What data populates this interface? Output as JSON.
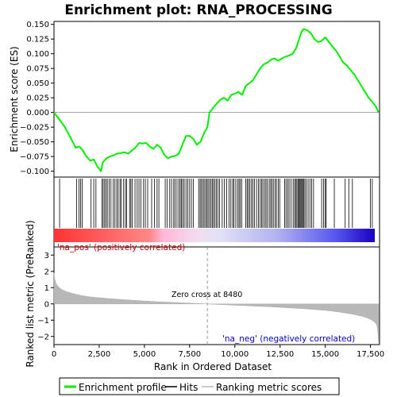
{
  "chart_data": {
    "type": "line",
    "title": "Enrichment plot: RNA_PROCESSING",
    "top_panel": {
      "ylabel": "Enrichment score (ES)",
      "ylim": [
        -0.11,
        0.155
      ],
      "yticks": [
        -0.1,
        -0.075,
        -0.05,
        -0.025,
        0.0,
        0.025,
        0.05,
        0.075,
        0.1,
        0.125,
        0.15
      ],
      "ytick_labels": [
        "−0.100",
        "−0.075",
        "−0.050",
        "−0.025",
        "0.000",
        "0.025",
        "0.050",
        "0.075",
        "0.100",
        "0.125",
        "0.150"
      ],
      "series": [
        {
          "name": "Enrichment profile",
          "color": "#00ee00",
          "x": [
            0,
            300,
            600,
            900,
            1200,
            1400,
            1600,
            1800,
            2000,
            2200,
            2400,
            2600,
            2700,
            2900,
            3100,
            3300,
            3500,
            3700,
            3900,
            4100,
            4300,
            4500,
            4700,
            4900,
            5100,
            5300,
            5500,
            5700,
            5900,
            6100,
            6300,
            6500,
            6700,
            6900,
            7100,
            7300,
            7500,
            7700,
            7900,
            8100,
            8300,
            8480,
            8600,
            8800,
            9000,
            9200,
            9400,
            9600,
            9800,
            10000,
            10200,
            10400,
            10600,
            10800,
            11000,
            11200,
            11400,
            11600,
            11800,
            12000,
            12200,
            12400,
            12600,
            12800,
            13000,
            13200,
            13400,
            13600,
            13700,
            13800,
            14000,
            14200,
            14400,
            14600,
            14800,
            15000,
            15200,
            15400,
            15600,
            15800,
            16000,
            16200,
            16400,
            16600,
            16800,
            17000,
            17200,
            17400,
            17600,
            17800,
            17950
          ],
          "y": [
            0.0,
            -0.012,
            -0.025,
            -0.042,
            -0.06,
            -0.058,
            -0.065,
            -0.075,
            -0.082,
            -0.08,
            -0.092,
            -0.1,
            -0.085,
            -0.078,
            -0.075,
            -0.073,
            -0.07,
            -0.069,
            -0.068,
            -0.07,
            -0.065,
            -0.06,
            -0.052,
            -0.053,
            -0.052,
            -0.058,
            -0.062,
            -0.055,
            -0.06,
            -0.072,
            -0.078,
            -0.075,
            -0.074,
            -0.07,
            -0.055,
            -0.04,
            -0.04,
            -0.045,
            -0.055,
            -0.05,
            -0.035,
            -0.025,
            0.0,
            0.008,
            0.015,
            0.022,
            0.025,
            0.02,
            0.03,
            0.032,
            0.035,
            0.03,
            0.045,
            0.05,
            0.055,
            0.065,
            0.075,
            0.082,
            0.085,
            0.09,
            0.092,
            0.088,
            0.092,
            0.095,
            0.097,
            0.1,
            0.11,
            0.13,
            0.138,
            0.142,
            0.14,
            0.135,
            0.125,
            0.12,
            0.122,
            0.128,
            0.12,
            0.112,
            0.105,
            0.095,
            0.085,
            0.08,
            0.072,
            0.065,
            0.055,
            0.045,
            0.035,
            0.025,
            0.018,
            0.01,
            0.0
          ]
        }
      ]
    },
    "hits_panel": {
      "hit_positions": [
        310,
        1250,
        1380,
        1470,
        1560,
        2050,
        2200,
        2320,
        2650,
        2720,
        2800,
        2870,
        2950,
        3050,
        3150,
        3280,
        3370,
        3470,
        3550,
        3650,
        3720,
        3850,
        3950,
        4020,
        4180,
        4250,
        4320,
        4480,
        4600,
        4700,
        4800,
        4950,
        5050,
        5180,
        5400,
        5550,
        5700,
        5800,
        6150,
        6250,
        6400,
        6500,
        6620,
        6700,
        6800,
        6900,
        6980,
        7050,
        7120,
        7200,
        7300,
        7400,
        7500,
        7600,
        7700,
        8000,
        8080,
        8150,
        8230,
        8300,
        8380,
        8450,
        8520,
        8600,
        8680,
        8750,
        8820,
        8900,
        8980,
        9060,
        9150,
        9300,
        9420,
        9550,
        9680,
        9780,
        9880,
        9950,
        10050,
        10150,
        10230,
        10300,
        10380,
        10600,
        10680,
        10750,
        10830,
        10920,
        11000,
        11080,
        11200,
        11300,
        11400,
        11480,
        11550,
        11640,
        11720,
        11800,
        11900,
        11980,
        12050,
        12130,
        12230,
        12300,
        12400,
        12480,
        12750,
        12830,
        12920,
        13000,
        13100,
        13220,
        13300,
        13370,
        13430,
        13490,
        13550,
        13600,
        13650,
        13700,
        13750,
        13800,
        13870,
        13950,
        14050,
        14150,
        14250,
        14350,
        14800,
        14900,
        15000,
        15050,
        15500,
        16100,
        16300,
        16500,
        17500,
        17600
      ]
    },
    "bottom_panel": {
      "ylabel": "Ranked list metric (PreRanked)",
      "xlabel": "Rank in Ordered Dataset",
      "ylim": [
        -2.5,
        3.5
      ],
      "yticks": [
        -2,
        -1,
        0,
        1,
        2,
        3
      ],
      "ytick_labels": [
        "−2",
        "−1",
        "0",
        "1",
        "2",
        "3"
      ],
      "metric_x": [
        0,
        30,
        100,
        200,
        400,
        700,
        1000,
        1500,
        2000,
        3000,
        4000,
        5000,
        6000,
        7000,
        8000,
        8480,
        9000,
        10000,
        11000,
        12000,
        13000,
        14000,
        15000,
        15500,
        16000,
        16500,
        17000,
        17300,
        17500,
        17650,
        17750,
        17850,
        17900,
        17950
      ],
      "metric_y": [
        1.9,
        1.6,
        1.3,
        1.1,
        0.9,
        0.75,
        0.65,
        0.52,
        0.43,
        0.33,
        0.25,
        0.18,
        0.12,
        0.07,
        0.02,
        0.0,
        -0.03,
        -0.08,
        -0.13,
        -0.18,
        -0.24,
        -0.31,
        -0.4,
        -0.46,
        -0.54,
        -0.63,
        -0.75,
        -0.85,
        -0.95,
        -1.05,
        -1.15,
        -1.3,
        -1.6,
        -2.4
      ],
      "zero_cross_label": "Zero cross at 8480",
      "zero_cross": 8480,
      "pos_label": "'na_pos' (positively correlated)",
      "neg_label": "'na_neg' (negatively correlated)"
    },
    "xlim": [
      0,
      18000
    ],
    "xticks": [
      0,
      2500,
      5000,
      7500,
      10000,
      12500,
      15000,
      17500
    ],
    "xtick_labels": [
      "0",
      "2,500",
      "5,000",
      "7,500",
      "10,000",
      "12,500",
      "15,000",
      "17,500"
    ],
    "legend": {
      "placement": "bottom",
      "items": [
        {
          "label": "Enrichment profile",
          "color": "#00ee00"
        },
        {
          "label": "Hits",
          "color": "#000000"
        },
        {
          "label": "Ranking metric scores",
          "color": "#bbbbbb"
        }
      ]
    }
  }
}
